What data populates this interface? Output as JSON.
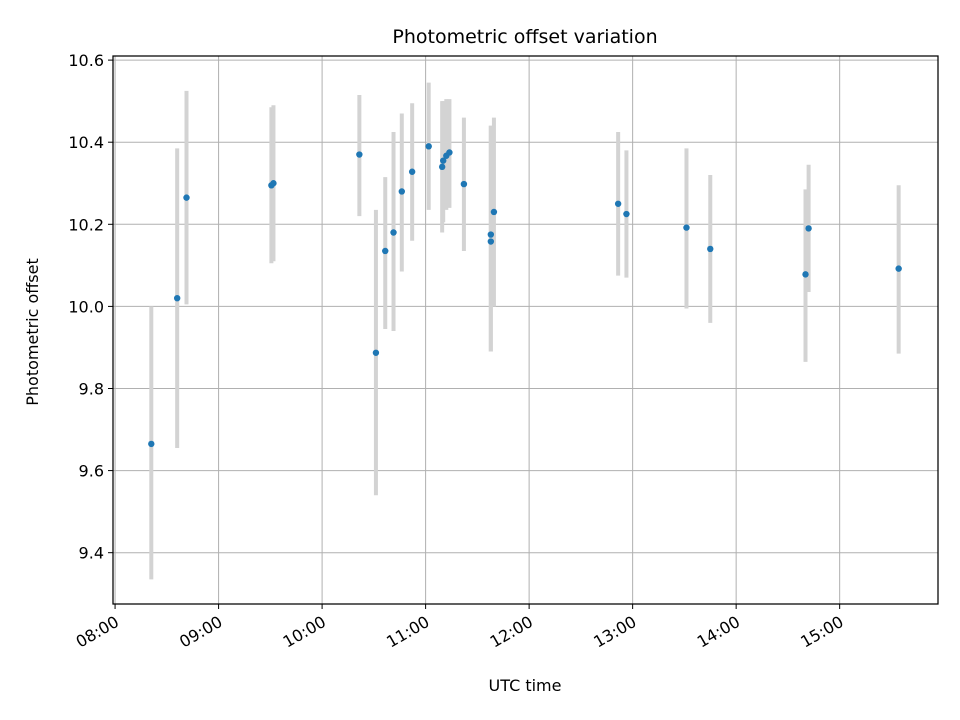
{
  "chart_data": {
    "type": "scatter",
    "title": "Photometric offset variation",
    "xlabel": "UTC time",
    "ylabel": "Photometric offset",
    "xlim_hours": [
      7.98,
      15.95
    ],
    "ylim": [
      9.275,
      10.61
    ],
    "grid": true,
    "x_ticks": [
      {
        "label": "08:00",
        "hour": 8
      },
      {
        "label": "09:00",
        "hour": 9
      },
      {
        "label": "10:00",
        "hour": 10
      },
      {
        "label": "11:00",
        "hour": 11
      },
      {
        "label": "12:00",
        "hour": 12
      },
      {
        "label": "13:00",
        "hour": 13
      },
      {
        "label": "14:00",
        "hour": 14
      },
      {
        "label": "15:00",
        "hour": 15
      }
    ],
    "y_ticks": [
      {
        "label": "9.4",
        "value": 9.4
      },
      {
        "label": "9.6",
        "value": 9.6
      },
      {
        "label": "9.8",
        "value": 9.8
      },
      {
        "label": "10.0",
        "value": 10.0
      },
      {
        "label": "10.2",
        "value": 10.2
      },
      {
        "label": "10.4",
        "value": 10.4
      },
      {
        "label": "10.6",
        "value": 10.6
      }
    ],
    "marker_color": "#1f77b4",
    "errorbar_color": "#d3d3d3",
    "series": [
      {
        "name": "Photometric offset",
        "points": [
          {
            "t": 8.35,
            "y": 9.665,
            "lo": 9.335,
            "hi": 10.0
          },
          {
            "t": 8.6,
            "y": 10.02,
            "lo": 9.655,
            "hi": 10.385
          },
          {
            "t": 8.69,
            "y": 10.265,
            "lo": 10.005,
            "hi": 10.525
          },
          {
            "t": 9.51,
            "y": 10.295,
            "lo": 10.105,
            "hi": 10.485
          },
          {
            "t": 9.53,
            "y": 10.3,
            "lo": 10.11,
            "hi": 10.49
          },
          {
            "t": 10.36,
            "y": 10.37,
            "lo": 10.22,
            "hi": 10.515
          },
          {
            "t": 10.52,
            "y": 9.887,
            "lo": 9.54,
            "hi": 10.235
          },
          {
            "t": 10.61,
            "y": 10.135,
            "lo": 9.945,
            "hi": 10.315
          },
          {
            "t": 10.69,
            "y": 10.18,
            "lo": 9.94,
            "hi": 10.425
          },
          {
            "t": 10.77,
            "y": 10.28,
            "lo": 10.085,
            "hi": 10.47
          },
          {
            "t": 10.87,
            "y": 10.328,
            "lo": 10.16,
            "hi": 10.495
          },
          {
            "t": 11.03,
            "y": 10.39,
            "lo": 10.235,
            "hi": 10.545
          },
          {
            "t": 11.16,
            "y": 10.34,
            "lo": 10.18,
            "hi": 10.5
          },
          {
            "t": 11.17,
            "y": 10.355,
            "lo": 10.205,
            "hi": 10.5
          },
          {
            "t": 11.2,
            "y": 10.367,
            "lo": 10.235,
            "hi": 10.505
          },
          {
            "t": 11.23,
            "y": 10.375,
            "lo": 10.24,
            "hi": 10.505
          },
          {
            "t": 11.37,
            "y": 10.298,
            "lo": 10.135,
            "hi": 10.46
          },
          {
            "t": 11.63,
            "y": 10.175,
            "lo": 9.89,
            "hi": 10.44
          },
          {
            "t": 11.63,
            "y": 10.158,
            "lo": 9.89,
            "hi": 10.44
          },
          {
            "t": 11.66,
            "y": 10.23,
            "lo": 10.0,
            "hi": 10.46
          },
          {
            "t": 12.86,
            "y": 10.25,
            "lo": 10.075,
            "hi": 10.425
          },
          {
            "t": 12.94,
            "y": 10.225,
            "lo": 10.07,
            "hi": 10.38
          },
          {
            "t": 13.52,
            "y": 10.192,
            "lo": 9.995,
            "hi": 10.385
          },
          {
            "t": 13.75,
            "y": 10.14,
            "lo": 9.96,
            "hi": 10.32
          },
          {
            "t": 14.67,
            "y": 10.078,
            "lo": 9.865,
            "hi": 10.285
          },
          {
            "t": 14.7,
            "y": 10.19,
            "lo": 10.035,
            "hi": 10.345
          },
          {
            "t": 15.57,
            "y": 10.092,
            "lo": 9.885,
            "hi": 10.295
          }
        ]
      }
    ]
  }
}
